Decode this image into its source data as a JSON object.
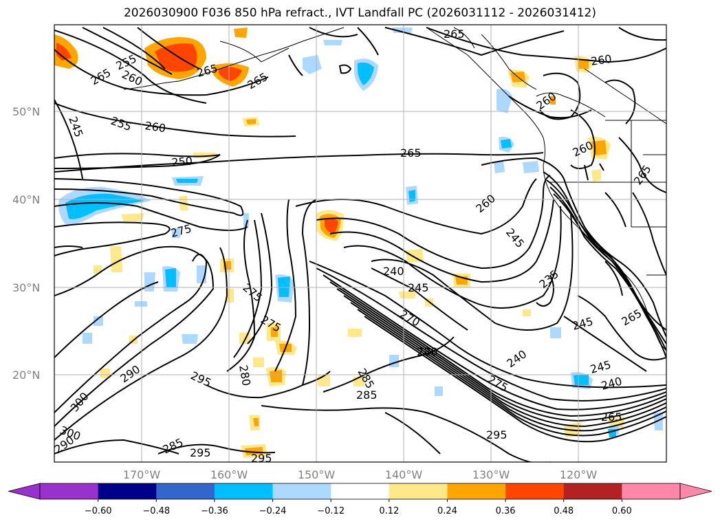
{
  "title": "2026030900 F036 850 hPa refract., IVT Landfall PC (2026031112 - 2026031412)",
  "lat_labels": [
    "50°N",
    "40°N",
    "30°N",
    "20°N"
  ],
  "lon_labels": [
    "170°W",
    "160°W",
    "150°W",
    "140°W",
    "130°W",
    "120°W"
  ],
  "contour_labels": [
    "265",
    "255",
    "260",
    "265",
    "265",
    "265",
    "260",
    "245",
    "255",
    "260",
    "260",
    "250",
    "265",
    "260",
    "260",
    "265",
    "275",
    "240",
    "245",
    "235",
    "245",
    "270",
    "245",
    "275",
    "275",
    "280",
    "290",
    "295",
    "285",
    "285",
    "240",
    "245",
    "275",
    "280",
    "300",
    "290",
    "285",
    "300",
    "295",
    "295",
    "240",
    "265",
    "265"
  ],
  "colorbar": {
    "ticks": [
      "−0.60",
      "−0.48",
      "−0.36",
      "−0.24",
      "−0.12",
      "0.12",
      "0.24",
      "0.36",
      "0.48",
      "0.60"
    ],
    "colors": [
      "#9932cc",
      "#00008b",
      "#3366cc",
      "#00bfff",
      "#add8ff",
      "#ffffff",
      "#ffe88a",
      "#ffa500",
      "#ff4500",
      "#b22222",
      "#ff88aa",
      "#ff88aa"
    ]
  }
}
